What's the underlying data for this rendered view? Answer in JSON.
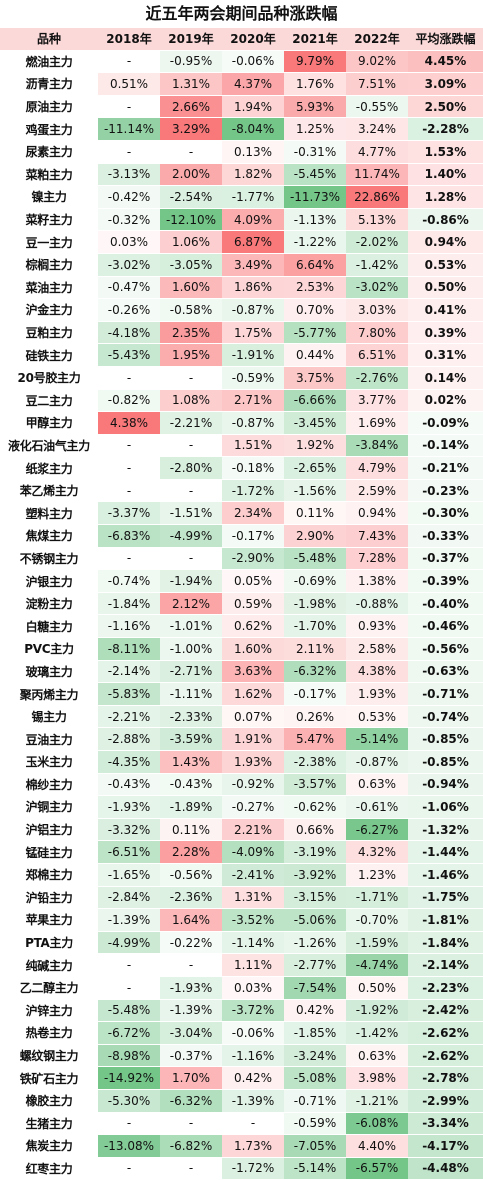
{
  "chart_data": {
    "type": "table",
    "title": "近五年两会期间品种涨跌幅",
    "columns": [
      "品种",
      "2018年",
      "2019年",
      "2020年",
      "2021年",
      "2022年",
      "平均涨跌幅"
    ],
    "color_scale": {
      "positive": "#f8696b",
      "zero": "#ffffff",
      "negative": "#63be7b"
    },
    "rows": [
      [
        "燃油主力",
        "-",
        "-0.95%",
        "-0.06%",
        "9.79%",
        "9.02%",
        "4.45%"
      ],
      [
        "沥青主力",
        "0.51%",
        "1.31%",
        "4.37%",
        "1.76%",
        "7.51%",
        "3.09%"
      ],
      [
        "原油主力",
        "-",
        "2.66%",
        "1.94%",
        "5.93%",
        "-0.55%",
        "2.50%"
      ],
      [
        "鸡蛋主力",
        "-11.14%",
        "3.29%",
        "-8.04%",
        "1.25%",
        "3.24%",
        "-2.28%"
      ],
      [
        "尿素主力",
        "-",
        "-",
        "0.13%",
        "-0.31%",
        "4.77%",
        "1.53%"
      ],
      [
        "菜粕主力",
        "-3.13%",
        "2.00%",
        "1.82%",
        "-5.45%",
        "11.74%",
        "1.40%"
      ],
      [
        "镍主力",
        "-0.42%",
        "-2.54%",
        "-1.77%",
        "-11.73%",
        "22.86%",
        "1.28%"
      ],
      [
        "菜籽主力",
        "-0.32%",
        "-12.10%",
        "4.09%",
        "-1.13%",
        "5.13%",
        "-0.86%"
      ],
      [
        "豆一主力",
        "0.03%",
        "1.06%",
        "6.87%",
        "-1.22%",
        "-2.02%",
        "0.94%"
      ],
      [
        "棕榈主力",
        "-3.02%",
        "-3.05%",
        "3.49%",
        "6.64%",
        "-1.42%",
        "0.53%"
      ],
      [
        "菜油主力",
        "-0.47%",
        "1.60%",
        "1.86%",
        "2.53%",
        "-3.02%",
        "0.50%"
      ],
      [
        "沪金主力",
        "-0.26%",
        "-0.58%",
        "-0.87%",
        "0.70%",
        "3.03%",
        "0.41%"
      ],
      [
        "豆粕主力",
        "-4.18%",
        "2.35%",
        "1.75%",
        "-5.77%",
        "7.80%",
        "0.39%"
      ],
      [
        "硅铁主力",
        "-5.43%",
        "1.95%",
        "-1.91%",
        "0.44%",
        "6.51%",
        "0.31%"
      ],
      [
        "20号胶主力",
        "-",
        "-",
        "-0.59%",
        "3.75%",
        "-2.76%",
        "0.14%"
      ],
      [
        "豆二主力",
        "-0.82%",
        "1.08%",
        "2.71%",
        "-6.66%",
        "3.77%",
        "0.02%"
      ],
      [
        "甲醇主力",
        "4.38%",
        "-2.21%",
        "-0.87%",
        "-3.45%",
        "1.69%",
        "-0.09%"
      ],
      [
        "液化石油气主力",
        "-",
        "-",
        "1.51%",
        "1.92%",
        "-3.84%",
        "-0.14%"
      ],
      [
        "纸浆主力",
        "-",
        "-2.80%",
        "-0.18%",
        "-2.65%",
        "4.79%",
        "-0.21%"
      ],
      [
        "苯乙烯主力",
        "-",
        "-",
        "-1.72%",
        "-1.56%",
        "2.59%",
        "-0.23%"
      ],
      [
        "塑料主力",
        "-3.37%",
        "-1.51%",
        "2.34%",
        "0.11%",
        "0.94%",
        "-0.30%"
      ],
      [
        "焦煤主力",
        "-6.83%",
        "-4.99%",
        "-0.17%",
        "2.90%",
        "7.43%",
        "-0.33%"
      ],
      [
        "不锈钢主力",
        "-",
        "-",
        "-2.90%",
        "-5.48%",
        "7.28%",
        "-0.37%"
      ],
      [
        "沪银主力",
        "-0.74%",
        "-1.94%",
        "0.05%",
        "-0.69%",
        "1.38%",
        "-0.39%"
      ],
      [
        "淀粉主力",
        "-1.84%",
        "2.12%",
        "0.59%",
        "-1.98%",
        "-0.88%",
        "-0.40%"
      ],
      [
        "白糖主力",
        "-1.16%",
        "-1.01%",
        "0.62%",
        "-1.70%",
        "0.93%",
        "-0.46%"
      ],
      [
        "PVC主力",
        "-8.11%",
        "-1.00%",
        "1.60%",
        "2.11%",
        "2.58%",
        "-0.56%"
      ],
      [
        "玻璃主力",
        "-2.14%",
        "-2.71%",
        "3.63%",
        "-6.32%",
        "4.38%",
        "-0.63%"
      ],
      [
        "聚丙烯主力",
        "-5.83%",
        "-1.11%",
        "1.62%",
        "-0.17%",
        "1.93%",
        "-0.71%"
      ],
      [
        "锡主力",
        "-2.21%",
        "-2.33%",
        "0.07%",
        "0.26%",
        "0.53%",
        "-0.74%"
      ],
      [
        "豆油主力",
        "-2.88%",
        "-3.59%",
        "1.91%",
        "5.47%",
        "-5.14%",
        "-0.85%"
      ],
      [
        "玉米主力",
        "-4.35%",
        "1.43%",
        "1.93%",
        "-2.38%",
        "-0.87%",
        "-0.85%"
      ],
      [
        "棉纱主力",
        "-0.43%",
        "-0.43%",
        "-0.92%",
        "-3.57%",
        "0.63%",
        "-0.94%"
      ],
      [
        "沪铜主力",
        "-1.93%",
        "-1.89%",
        "-0.27%",
        "-0.62%",
        "-0.61%",
        "-1.06%"
      ],
      [
        "沪铝主力",
        "-3.32%",
        "0.11%",
        "2.21%",
        "0.66%",
        "-6.27%",
        "-1.32%"
      ],
      [
        "锰硅主力",
        "-6.51%",
        "2.28%",
        "-4.09%",
        "-3.19%",
        "4.32%",
        "-1.44%"
      ],
      [
        "郑棉主力",
        "-1.65%",
        "-0.56%",
        "-2.41%",
        "-3.92%",
        "1.23%",
        "-1.46%"
      ],
      [
        "沪铅主力",
        "-2.84%",
        "-2.36%",
        "1.31%",
        "-3.15%",
        "-1.71%",
        "-1.75%"
      ],
      [
        "苹果主力",
        "-1.39%",
        "1.64%",
        "-3.52%",
        "-5.06%",
        "-0.70%",
        "-1.81%"
      ],
      [
        "PTA主力",
        "-4.99%",
        "-0.22%",
        "-1.14%",
        "-1.26%",
        "-1.59%",
        "-1.84%"
      ],
      [
        "纯碱主力",
        "-",
        "-",
        "1.11%",
        "-2.77%",
        "-4.74%",
        "-2.14%"
      ],
      [
        "乙二醇主力",
        "-",
        "-1.93%",
        "0.03%",
        "-7.54%",
        "0.50%",
        "-2.23%"
      ],
      [
        "沪锌主力",
        "-5.48%",
        "-1.39%",
        "-3.72%",
        "0.42%",
        "-1.92%",
        "-2.42%"
      ],
      [
        "热卷主力",
        "-6.72%",
        "-3.04%",
        "-0.06%",
        "-1.85%",
        "-1.42%",
        "-2.62%"
      ],
      [
        "螺纹钢主力",
        "-8.98%",
        "-0.37%",
        "-1.16%",
        "-3.24%",
        "0.63%",
        "-2.62%"
      ],
      [
        "铁矿石主力",
        "-14.92%",
        "1.70%",
        "0.42%",
        "-5.08%",
        "3.98%",
        "-2.78%"
      ],
      [
        "橡胶主力",
        "-5.30%",
        "-6.32%",
        "-1.39%",
        "-0.71%",
        "-1.21%",
        "-2.99%"
      ],
      [
        "生猪主力",
        "-",
        "-",
        "-",
        "-0.59%",
        "-6.08%",
        "-3.34%"
      ],
      [
        "焦炭主力",
        "-13.08%",
        "-6.82%",
        "1.73%",
        "-7.05%",
        "4.40%",
        "-4.17%"
      ],
      [
        "红枣主力",
        "-",
        "-",
        "-1.72%",
        "-5.14%",
        "-6.57%",
        "-4.48%"
      ]
    ]
  }
}
